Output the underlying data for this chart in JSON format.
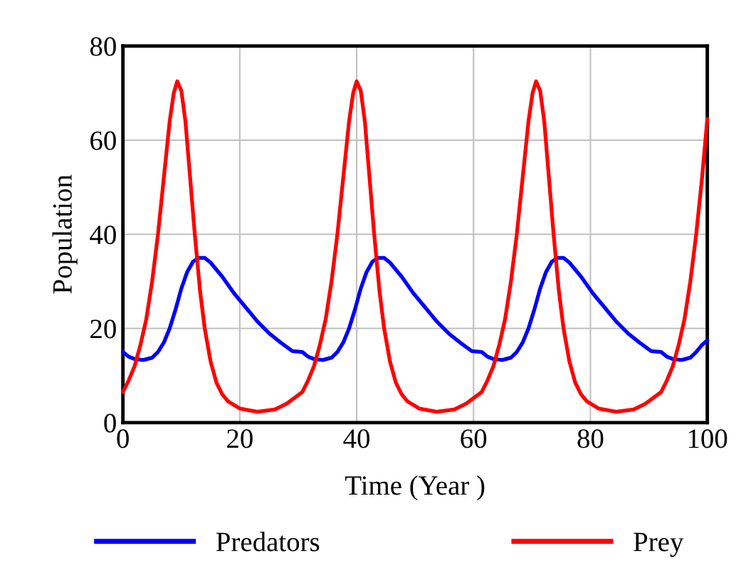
{
  "chart_data": {
    "type": "line",
    "xlabel": "Time (Year )",
    "ylabel": "Population",
    "xlim": [
      0,
      100
    ],
    "xticks": [
      0,
      20,
      40,
      60,
      80,
      100
    ],
    "ylim": [
      0,
      80
    ],
    "yticks": [
      0,
      20,
      40,
      60,
      80
    ],
    "grid": true,
    "legend": "bottom",
    "marker": "none",
    "line_style": "solid",
    "series": [
      {
        "name": "Predators",
        "color": "#0000ff",
        "x": [
          0,
          1,
          2,
          3.5,
          5,
          6,
          7,
          8,
          9,
          10,
          11,
          12,
          13,
          14,
          15,
          17,
          19,
          21,
          23,
          25,
          27,
          29,
          30.7,
          31.7,
          32.7,
          34.2,
          35.7,
          36.7,
          37.7,
          38.7,
          39.7,
          40.7,
          41.7,
          42.7,
          43.7,
          44.7,
          45.7,
          47.7,
          49.7,
          51.7,
          53.7,
          55.7,
          57.7,
          59.7,
          61.4,
          62.4,
          63.4,
          64.9,
          66.4,
          67.4,
          68.4,
          69.4,
          70.4,
          71.4,
          72.4,
          73.4,
          74.4,
          75.4,
          76.4,
          78.4,
          80.4,
          82.4,
          84.4,
          86.4,
          88.4,
          90.4,
          92.1,
          93.1,
          94.1,
          95.6,
          97.1,
          98.1,
          99.1,
          100
        ],
        "values": [
          15,
          14,
          13.5,
          13.3,
          13.8,
          15,
          17,
          20,
          24,
          28.5,
          32,
          34.2,
          35,
          35,
          34,
          31,
          27.5,
          24.5,
          21.5,
          19,
          17,
          15.2,
          15,
          14,
          13.5,
          13.3,
          13.8,
          15,
          17,
          20,
          24,
          28.5,
          32,
          34.2,
          35,
          35,
          34,
          31,
          27.5,
          24.5,
          21.5,
          19,
          17,
          15.2,
          15,
          14,
          13.5,
          13.3,
          13.8,
          15,
          17,
          20,
          24,
          28.5,
          32,
          34.2,
          35,
          35,
          34,
          31,
          27.5,
          24.5,
          21.5,
          19,
          17,
          15.2,
          15,
          14,
          13.5,
          13.3,
          13.8,
          15,
          16.5,
          17.5
        ]
      },
      {
        "name": "Prey",
        "color": "#ff0000",
        "x": [
          0,
          1,
          2,
          3,
          4,
          5,
          6,
          7,
          8,
          8.7,
          9.3,
          10,
          10.7,
          11.5,
          12.3,
          13.2,
          14,
          15,
          16,
          17,
          18,
          20,
          23,
          26,
          28,
          30.7,
          31.7,
          32.7,
          33.7,
          34.7,
          35.7,
          36.7,
          37.7,
          38.7,
          39.4,
          40,
          40.7,
          41.4,
          42.2,
          43,
          43.9,
          44.7,
          45.7,
          46.7,
          47.7,
          48.7,
          50.7,
          53.7,
          56.7,
          58.7,
          61.4,
          62.4,
          63.4,
          64.4,
          65.4,
          66.4,
          67.4,
          68.4,
          69.4,
          70.1,
          70.7,
          71.4,
          72.1,
          72.9,
          73.7,
          74.6,
          75.4,
          76.4,
          77.4,
          78.4,
          79.4,
          81.4,
          84.4,
          87.4,
          89.4,
          92.1,
          93.1,
          94.1,
          95.1,
          96.1,
          97.1,
          98.1,
          99.1,
          100
        ],
        "values": [
          6.5,
          9,
          12,
          16.5,
          22,
          30,
          40,
          52,
          64,
          70,
          72.5,
          70.5,
          64,
          52,
          40,
          28,
          20,
          13,
          8.5,
          6,
          4.5,
          3,
          2.3,
          2.8,
          4,
          6.5,
          9,
          12,
          16.5,
          22,
          30,
          40,
          52,
          64,
          70,
          72.5,
          70.5,
          64,
          52,
          40,
          28,
          20,
          13,
          8.5,
          6,
          4.5,
          3,
          2.3,
          2.8,
          4,
          6.5,
          9,
          12,
          16.5,
          22,
          30,
          40,
          52,
          64,
          70,
          72.5,
          70.5,
          64,
          52,
          40,
          28,
          20,
          13,
          8.5,
          6,
          4.5,
          3,
          2.3,
          2.8,
          4,
          6.5,
          9,
          12,
          16.5,
          22,
          30,
          40,
          52,
          64.5
        ]
      }
    ]
  }
}
